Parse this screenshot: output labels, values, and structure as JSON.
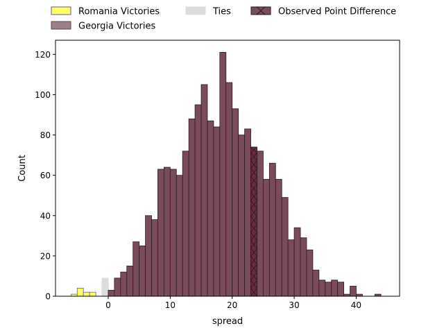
{
  "chart_data": {
    "type": "bar",
    "subtype": "histogram",
    "xlabel": "spread",
    "ylabel": "Count",
    "xlim": [
      -8.5,
      47
    ],
    "ylim": [
      0,
      127
    ],
    "x_ticks": [
      0,
      10,
      20,
      30,
      40
    ],
    "y_ticks": [
      0,
      20,
      40,
      60,
      80,
      100,
      120
    ],
    "bin_width": 1,
    "legend": {
      "placement": "top",
      "entries": [
        {
          "label": "Romania Victories",
          "fill": "#ffff66",
          "edge": "#5a5ab4"
        },
        {
          "label": "Ties",
          "fill": "#dcdcdc",
          "edge": "#dcdcdc"
        },
        {
          "label": "Observed Point Difference",
          "fill": "#7a4b5a",
          "edge": "#2a1a20",
          "hatch": "x"
        },
        {
          "label": "Georgia Victories",
          "fill": "#9b7f86",
          "edge": "#5a4a4f"
        }
      ]
    },
    "series": [
      {
        "name": "Romania Victories",
        "color": "#ffff66",
        "bins": [
          {
            "x": -6,
            "count": 1
          },
          {
            "x": -5,
            "count": 4
          },
          {
            "x": -4,
            "count": 2
          },
          {
            "x": -3,
            "count": 2
          },
          {
            "x": -2,
            "count": 0
          },
          {
            "x": -1,
            "count": 7
          }
        ]
      },
      {
        "name": "Ties",
        "color": "#dcdcdc",
        "bins": [
          {
            "x": -1,
            "count": 9
          }
        ]
      },
      {
        "name": "Georgia Victories",
        "color": "#7a4b5a",
        "bins": [
          {
            "x": 0,
            "count": 3
          },
          {
            "x": 1,
            "count": 9
          },
          {
            "x": 2,
            "count": 12
          },
          {
            "x": 3,
            "count": 15
          },
          {
            "x": 4,
            "count": 27
          },
          {
            "x": 5,
            "count": 25
          },
          {
            "x": 6,
            "count": 40
          },
          {
            "x": 7,
            "count": 38
          },
          {
            "x": 8,
            "count": 63
          },
          {
            "x": 9,
            "count": 64
          },
          {
            "x": 10,
            "count": 63
          },
          {
            "x": 11,
            "count": 60
          },
          {
            "x": 12,
            "count": 72
          },
          {
            "x": 13,
            "count": 88
          },
          {
            "x": 14,
            "count": 95
          },
          {
            "x": 15,
            "count": 105
          },
          {
            "x": 16,
            "count": 87
          },
          {
            "x": 17,
            "count": 84
          },
          {
            "x": 18,
            "count": 121
          },
          {
            "x": 19,
            "count": 106
          },
          {
            "x": 20,
            "count": 93
          },
          {
            "x": 21,
            "count": 80
          },
          {
            "x": 22,
            "count": 83
          },
          {
            "x": 23,
            "count": 74
          },
          {
            "x": 24,
            "count": 72
          },
          {
            "x": 25,
            "count": 58
          },
          {
            "x": 26,
            "count": 66
          },
          {
            "x": 27,
            "count": 58
          },
          {
            "x": 28,
            "count": 49
          },
          {
            "x": 29,
            "count": 28
          },
          {
            "x": 30,
            "count": 34
          },
          {
            "x": 31,
            "count": 29
          },
          {
            "x": 32,
            "count": 23
          },
          {
            "x": 33,
            "count": 13
          },
          {
            "x": 34,
            "count": 8
          },
          {
            "x": 35,
            "count": 7
          },
          {
            "x": 36,
            "count": 8
          },
          {
            "x": 37,
            "count": 7
          },
          {
            "x": 38,
            "count": 1
          },
          {
            "x": 39,
            "count": 5
          },
          {
            "x": 40,
            "count": 1
          },
          {
            "x": 41,
            "count": 0
          },
          {
            "x": 42,
            "count": 0
          },
          {
            "x": 43,
            "count": 1
          }
        ]
      }
    ],
    "observed_point_difference": {
      "x": 23,
      "count": 74,
      "hatch": "x"
    }
  }
}
